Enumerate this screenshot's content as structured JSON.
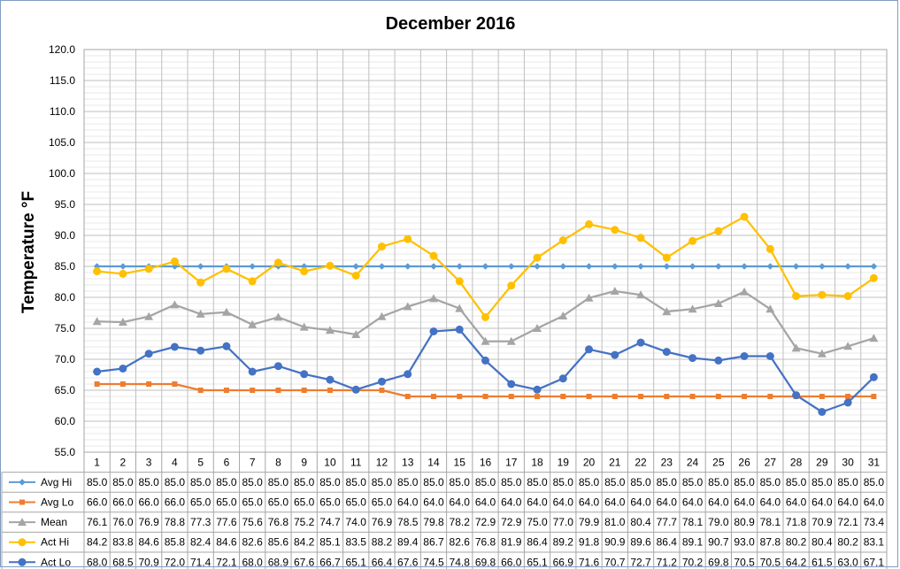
{
  "chart_data": {
    "type": "line",
    "title": "December 2016",
    "ylabel": "Temperature °F",
    "xlabel": "",
    "ylim": [
      55,
      120
    ],
    "y_ticks": [
      "55.0",
      "60.0",
      "65.0",
      "70.0",
      "75.0",
      "80.0",
      "85.0",
      "90.0",
      "95.0",
      "100.0",
      "105.0",
      "110.0",
      "115.0",
      "120.0"
    ],
    "grid": true,
    "legend": "data-table-left",
    "categories": [
      "1",
      "2",
      "3",
      "4",
      "5",
      "6",
      "7",
      "8",
      "9",
      "10",
      "11",
      "12",
      "13",
      "14",
      "15",
      "16",
      "17",
      "18",
      "19",
      "20",
      "21",
      "22",
      "23",
      "24",
      "25",
      "26",
      "27",
      "28",
      "29",
      "30",
      "31"
    ],
    "series": [
      {
        "name": "Avg Hi",
        "color": "#5b9bd5",
        "marker": "diamond",
        "values": [
          85.0,
          85.0,
          85.0,
          85.0,
          85.0,
          85.0,
          85.0,
          85.0,
          85.0,
          85.0,
          85.0,
          85.0,
          85.0,
          85.0,
          85.0,
          85.0,
          85.0,
          85.0,
          85.0,
          85.0,
          85.0,
          85.0,
          85.0,
          85.0,
          85.0,
          85.0,
          85.0,
          85.0,
          85.0,
          85.0,
          85.0
        ]
      },
      {
        "name": "Avg Lo",
        "color": "#ed7d31",
        "marker": "square",
        "values": [
          66.0,
          66.0,
          66.0,
          66.0,
          65.0,
          65.0,
          65.0,
          65.0,
          65.0,
          65.0,
          65.0,
          65.0,
          64.0,
          64.0,
          64.0,
          64.0,
          64.0,
          64.0,
          64.0,
          64.0,
          64.0,
          64.0,
          64.0,
          64.0,
          64.0,
          64.0,
          64.0,
          64.0,
          64.0,
          64.0,
          64.0
        ]
      },
      {
        "name": "Mean",
        "color": "#a5a5a5",
        "marker": "triangle",
        "values": [
          76.1,
          76.0,
          76.9,
          78.8,
          77.3,
          77.6,
          75.6,
          76.8,
          75.2,
          74.7,
          74.0,
          76.9,
          78.5,
          79.8,
          78.2,
          72.9,
          72.9,
          75.0,
          77.0,
          79.9,
          81.0,
          80.4,
          77.7,
          78.1,
          79.0,
          80.9,
          78.1,
          71.8,
          70.9,
          72.1,
          73.4
        ]
      },
      {
        "name": "Act Hi",
        "color": "#ffc000",
        "marker": "circle",
        "values": [
          84.2,
          83.8,
          84.6,
          85.8,
          82.4,
          84.6,
          82.6,
          85.6,
          84.2,
          85.1,
          83.5,
          88.2,
          89.4,
          86.7,
          82.6,
          76.8,
          81.9,
          86.4,
          89.2,
          91.8,
          90.9,
          89.6,
          86.4,
          89.1,
          90.7,
          93.0,
          87.8,
          80.2,
          80.4,
          80.2,
          83.1
        ]
      },
      {
        "name": "Act Lo",
        "color": "#4472c4",
        "marker": "circle",
        "values": [
          68.0,
          68.5,
          70.9,
          72.0,
          71.4,
          72.1,
          68.0,
          68.9,
          67.6,
          66.7,
          65.1,
          66.4,
          67.6,
          74.5,
          74.8,
          69.8,
          66.0,
          65.1,
          66.9,
          71.6,
          70.7,
          72.7,
          71.2,
          70.2,
          69.8,
          70.5,
          70.5,
          64.2,
          61.5,
          63.0,
          67.1
        ]
      }
    ]
  }
}
